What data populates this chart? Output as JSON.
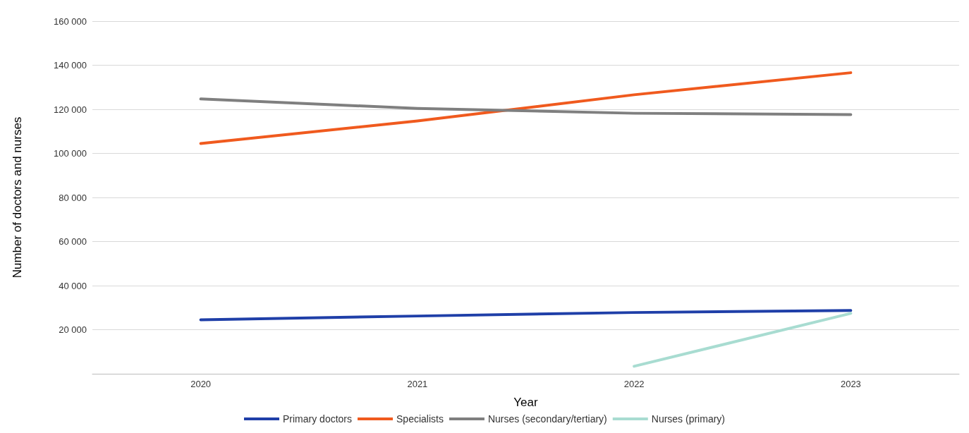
{
  "chart_data": {
    "type": "line",
    "xlabel": "Year",
    "ylabel": "Number of doctors and nurses",
    "categories": [
      "2020",
      "2021",
      "2022",
      "2023"
    ],
    "series": [
      {
        "name": "Primary doctors",
        "color": "#1f3fa8",
        "values": [
          24500,
          26200,
          27800,
          28700
        ]
      },
      {
        "name": "Specialists",
        "color": "#f05a1e",
        "values": [
          104500,
          114700,
          126600,
          136600
        ]
      },
      {
        "name": "Nurses (secondary/tertiary)",
        "color": "#7f7f7f",
        "values": [
          124700,
          120400,
          118200,
          117600
        ]
      },
      {
        "name": "Nurses (primary)",
        "color": "#a8dcd1",
        "values": [
          null,
          null,
          3400,
          27400
        ]
      }
    ],
    "ylim": [
      0,
      160000
    ],
    "yticks": [
      {
        "value": 0,
        "label": null
      },
      {
        "value": 20000,
        "label": "20 000"
      },
      {
        "value": 40000,
        "label": "40 000"
      },
      {
        "value": 60000,
        "label": "60 000"
      },
      {
        "value": 80000,
        "label": "80 000"
      },
      {
        "value": 100000,
        "label": "100 000"
      },
      {
        "value": 120000,
        "label": "120 000"
      },
      {
        "value": 140000,
        "label": "140 000"
      },
      {
        "value": 160000,
        "label": "160 000"
      }
    ],
    "grid": "y",
    "legend": "bottom",
    "marker": "none",
    "line_style": "solid"
  }
}
